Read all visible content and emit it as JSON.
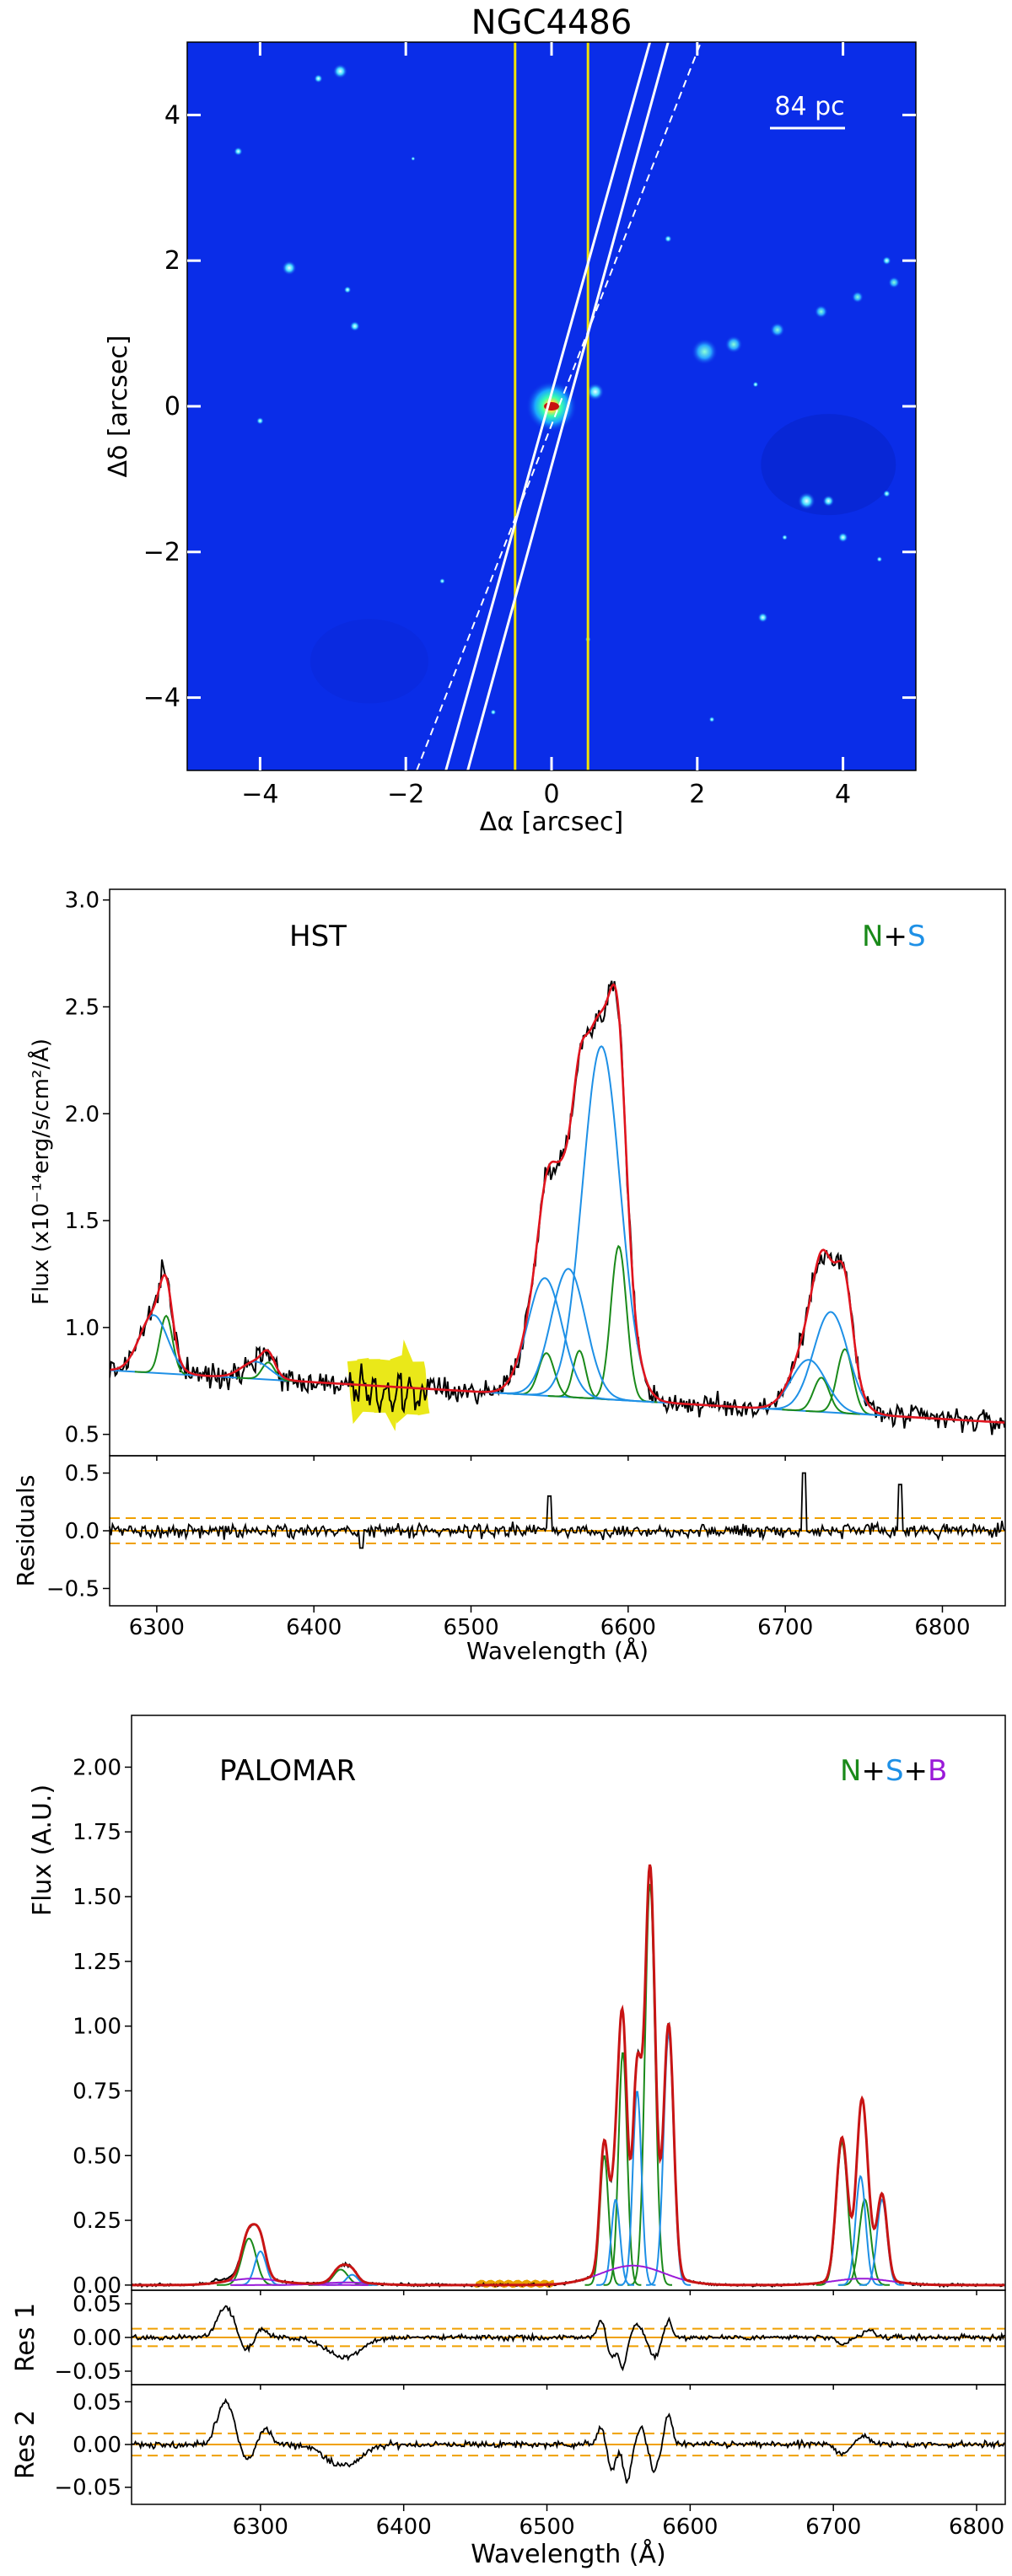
{
  "chart_data": [
    {
      "type": "image",
      "title": "NGC4486",
      "xlabel": "Δα [arcsec]",
      "ylabel": "Δδ [arcsec]",
      "xlim": [
        -5,
        5
      ],
      "ylim": [
        -5,
        5
      ],
      "xticks": [
        -4,
        -2,
        0,
        2,
        4
      ],
      "yticks": [
        -4,
        -2,
        0,
        2,
        4
      ],
      "xtick_labels": [
        "−4",
        "−2",
        "0",
        "2",
        "4"
      ],
      "ytick_labels": [
        "−4",
        "−2",
        "0",
        "2",
        "4"
      ],
      "scalebar_label": "84 pc",
      "scalebar_length_arcsec": 1.0,
      "background_color": "#0a2de8",
      "slit_yellow": {
        "x": [
          -0.5,
          0.5
        ],
        "color": "#f2e300"
      },
      "slit_white": {
        "lines": [
          {
            "x1": -1.45,
            "y1": -5,
            "x2": 1.35,
            "y2": 5
          },
          {
            "x1": -1.15,
            "y1": -5,
            "x2": 1.6,
            "y2": 5
          }
        ],
        "dashed": {
          "x1": -1.85,
          "y1": -5,
          "x2": 2.05,
          "y2": 5
        },
        "color": "#ffffff"
      },
      "sources": [
        {
          "x": 0.0,
          "y": 0.0,
          "r": 0.35,
          "kind": "nucleus"
        },
        {
          "x": 0.6,
          "y": 0.2,
          "r": 0.12,
          "kind": "knot"
        },
        {
          "x": -2.9,
          "y": 4.6,
          "r": 0.1,
          "kind": "star"
        },
        {
          "x": -3.2,
          "y": 4.5,
          "r": 0.06,
          "kind": "star"
        },
        {
          "x": -4.3,
          "y": 3.5,
          "r": 0.06,
          "kind": "star"
        },
        {
          "x": -3.6,
          "y": 1.9,
          "r": 0.1,
          "kind": "star"
        },
        {
          "x": -2.7,
          "y": 1.1,
          "r": 0.07,
          "kind": "star"
        },
        {
          "x": -2.8,
          "y": 1.6,
          "r": 0.05,
          "kind": "star"
        },
        {
          "x": 3.5,
          "y": -1.3,
          "r": 0.12,
          "kind": "star"
        },
        {
          "x": 3.8,
          "y": -1.3,
          "r": 0.08,
          "kind": "star"
        },
        {
          "x": 4.0,
          "y": -1.8,
          "r": 0.07,
          "kind": "star"
        },
        {
          "x": 2.9,
          "y": -2.9,
          "r": 0.07,
          "kind": "star"
        },
        {
          "x": 4.6,
          "y": -1.2,
          "r": 0.05,
          "kind": "star"
        },
        {
          "x": 4.5,
          "y": -2.1,
          "r": 0.04,
          "kind": "star"
        },
        {
          "x": 3.2,
          "y": -1.8,
          "r": 0.04,
          "kind": "star"
        },
        {
          "x": -4.0,
          "y": -0.2,
          "r": 0.05,
          "kind": "star"
        },
        {
          "x": -1.5,
          "y": -2.4,
          "r": 0.04,
          "kind": "star"
        },
        {
          "x": 1.6,
          "y": 2.3,
          "r": 0.05,
          "kind": "star"
        },
        {
          "x": 0.5,
          "y": -3.2,
          "r": 0.04,
          "kind": "star"
        },
        {
          "x": 2.8,
          "y": 0.3,
          "r": 0.04,
          "kind": "star"
        },
        {
          "x": 4.6,
          "y": 2.0,
          "r": 0.06,
          "kind": "star"
        },
        {
          "x": -1.9,
          "y": 3.4,
          "r": 0.03,
          "kind": "star"
        },
        {
          "x": -0.8,
          "y": -4.2,
          "r": 0.04,
          "kind": "star"
        },
        {
          "x": 2.2,
          "y": -4.3,
          "r": 0.04,
          "kind": "star"
        }
      ],
      "jet": [
        {
          "x": 2.1,
          "y": 0.75,
          "r": 0.18
        },
        {
          "x": 2.5,
          "y": 0.85,
          "r": 0.12
        },
        {
          "x": 3.1,
          "y": 1.05,
          "r": 0.1
        },
        {
          "x": 3.7,
          "y": 1.3,
          "r": 0.09
        },
        {
          "x": 4.2,
          "y": 1.5,
          "r": 0.08
        },
        {
          "x": 4.7,
          "y": 1.7,
          "r": 0.08
        }
      ]
    },
    {
      "type": "line",
      "annotation": "HST",
      "legend_parts": [
        {
          "text": "N",
          "color": "#1a8a1a"
        },
        {
          "text": "+",
          "color": "#000000"
        },
        {
          "text": "S",
          "color": "#1e90e6"
        }
      ],
      "xlim": [
        6270,
        6840
      ],
      "ylim": [
        0.4,
        3.05
      ],
      "ylabel": "Flux (x10⁻¹⁴erg/s/cm²/Å)",
      "yticks": [
        0.5,
        1.0,
        1.5,
        2.0,
        2.5,
        3.0
      ],
      "ytick_labels": [
        "0.5",
        "1.0",
        "1.5",
        "2.0",
        "2.5",
        "3.0"
      ],
      "continuum": {
        "a": 0.8,
        "slope": -0.00043
      },
      "components": [
        {
          "color": "#1a8a1a",
          "lines": [
            [
              6306,
              4,
              0.27
            ],
            [
              6371,
              4,
              0.08
            ],
            [
              6548,
              5,
              0.2
            ],
            [
              6569,
              4,
              0.22
            ],
            [
              6594,
              5,
              0.72
            ],
            [
              6723,
              5,
              0.16
            ],
            [
              6738,
              5,
              0.3
            ]
          ]
        },
        {
          "color": "#1e90e6",
          "lines": [
            [
              6298,
              9,
              0.27
            ],
            [
              6363,
              9,
              0.08
            ],
            [
              6547,
              11,
              0.55
            ],
            [
              6562,
              11,
              0.6
            ],
            [
              6583,
              12,
              1.65
            ],
            [
              6715,
              11,
              0.24
            ],
            [
              6729,
              11,
              0.47
            ]
          ]
        }
      ],
      "masked_region": [
        6425,
        6470
      ],
      "masked_color": "#e8e600",
      "series": [
        {
          "name": "N",
          "color": "#1a8a1a"
        },
        {
          "name": "S",
          "color": "#1e90e6"
        }
      ],
      "residuals": {
        "ylabel": "Residuals",
        "ylim": [
          -0.65,
          0.65
        ],
        "yticks": [
          -0.5,
          0.0,
          0.5
        ],
        "ytick_labels": [
          "−0.5",
          "0.0",
          "0.5"
        ],
        "bands": [
          0.11,
          -0.11
        ],
        "spikes": [
          [
            6550,
            0.3
          ],
          [
            6712,
            0.5
          ],
          [
            6773,
            0.4
          ],
          [
            6430,
            -0.15
          ]
        ]
      },
      "xlabel": "Wavelength (Å)",
      "xticks": [
        6300,
        6400,
        6500,
        6600,
        6700,
        6800
      ],
      "xtick_labels": [
        "6300",
        "6400",
        "6500",
        "6600",
        "6700",
        "6800"
      ]
    },
    {
      "type": "line",
      "annotation": "PALOMAR",
      "legend_parts": [
        {
          "text": "N",
          "color": "#1a8a1a"
        },
        {
          "text": "+",
          "color": "#000000"
        },
        {
          "text": "S",
          "color": "#1e90e6"
        },
        {
          "text": "+",
          "color": "#000000"
        },
        {
          "text": "B",
          "color": "#9a1ad8"
        }
      ],
      "xlim": [
        6210,
        6820
      ],
      "ylim": [
        -0.02,
        2.2
      ],
      "ylabel": "Flux (A.U.)",
      "yticks": [
        0.0,
        0.25,
        0.5,
        0.75,
        1.0,
        1.25,
        1.5,
        1.75,
        2.0
      ],
      "ytick_labels": [
        "0.00",
        "0.25",
        "0.50",
        "0.75",
        "1.00",
        "1.25",
        "1.50",
        "1.75",
        "2.00"
      ],
      "components": [
        {
          "color": "#1a8a1a",
          "lines": [
            [
              6292,
              5,
              0.18
            ],
            [
              6356,
              5,
              0.06
            ],
            [
              6540,
              3,
              0.5
            ],
            [
              6553,
              3,
              0.9
            ],
            [
              6572,
              3.5,
              1.55
            ],
            [
              6706,
              4,
              0.55
            ],
            [
              6722,
              4,
              0.33
            ]
          ]
        },
        {
          "color": "#1e90e6",
          "lines": [
            [
              6300,
              4,
              0.13
            ],
            [
              6364,
              4,
              0.04
            ],
            [
              6548,
              3,
              0.33
            ],
            [
              6563,
              3,
              0.75
            ],
            [
              6585,
              3.5,
              0.97
            ],
            [
              6719,
              3.5,
              0.42
            ],
            [
              6734,
              3.5,
              0.33
            ]
          ]
        },
        {
          "color": "#9a1ad8",
          "lines": [
            [
              6295,
              18,
              0.025
            ],
            [
              6360,
              18,
              0.01
            ],
            [
              6560,
              22,
              0.075
            ],
            [
              6720,
              20,
              0.025
            ]
          ]
        }
      ],
      "masked_region": [
        6450,
        6505
      ],
      "masked_color": "#e8a000",
      "series": [
        {
          "name": "N",
          "color": "#1a8a1a"
        },
        {
          "name": "S",
          "color": "#1e90e6"
        },
        {
          "name": "B",
          "color": "#9a1ad8"
        }
      ],
      "res1": {
        "ylabel": "Res 1",
        "ylim": [
          -0.07,
          0.07
        ],
        "yticks": [
          -0.05,
          0.0,
          0.05
        ],
        "ytick_labels": [
          "−0.05",
          "0.00",
          "0.05"
        ],
        "bands": [
          0.013,
          -0.013
        ]
      },
      "res2": {
        "ylabel": "Res 2",
        "ylim": [
          -0.07,
          0.07
        ],
        "yticks": [
          -0.05,
          0.0,
          0.05
        ],
        "ytick_labels": [
          "−0.05",
          "0.00",
          "0.05"
        ],
        "bands": [
          0.013,
          -0.013
        ]
      },
      "xlabel": "Wavelength (Å)",
      "xticks": [
        6300,
        6400,
        6500,
        6600,
        6700,
        6800
      ],
      "xtick_labels": [
        "6300",
        "6400",
        "6500",
        "6600",
        "6700",
        "6800"
      ]
    }
  ]
}
